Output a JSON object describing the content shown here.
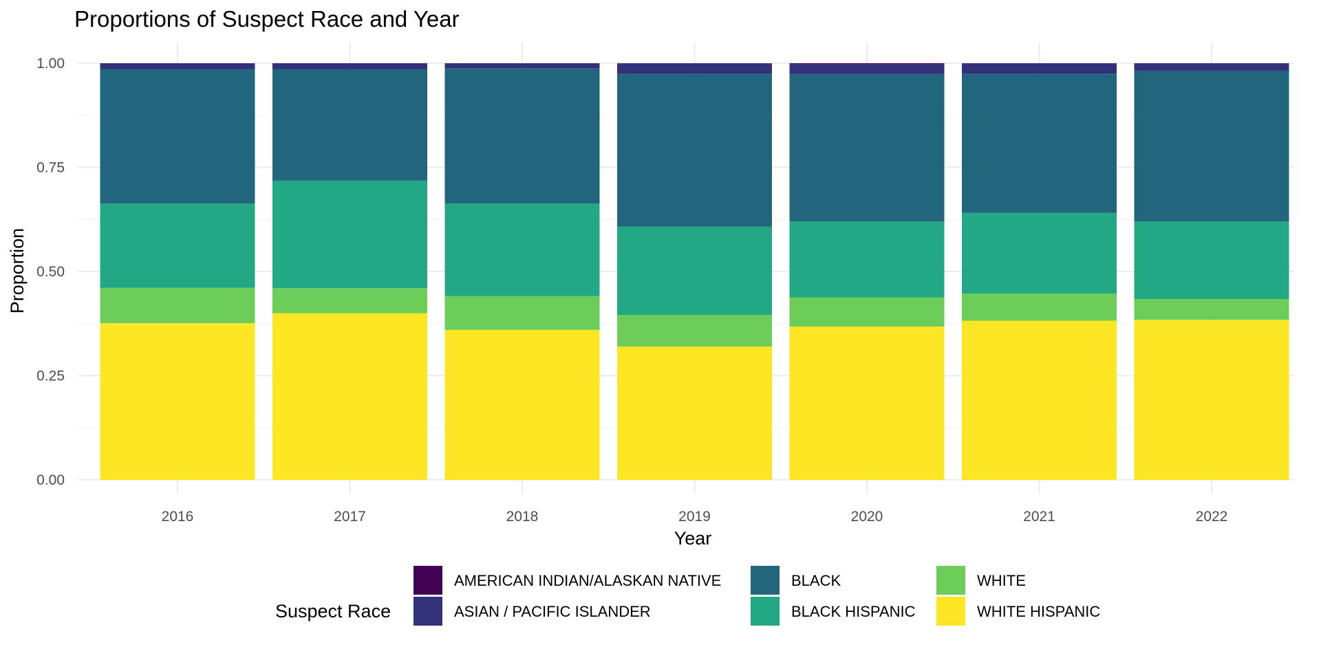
{
  "chart_data": {
    "type": "bar",
    "stacked": true,
    "title": "Proportions of Suspect Race and Year",
    "xlabel": "Year",
    "ylabel": "Proportion",
    "ylim": [
      0,
      1
    ],
    "yticks": [
      0.0,
      0.25,
      0.5,
      0.75,
      1.0
    ],
    "ytick_labels": [
      "0.00",
      "0.25",
      "0.50",
      "0.75",
      "1.00"
    ],
    "categories": [
      "2016",
      "2017",
      "2018",
      "2019",
      "2020",
      "2021",
      "2022"
    ],
    "legend_title": "Suspect Race",
    "legend_position": "bottom",
    "series": [
      {
        "name": "WHITE HISPANIC",
        "color": "#FDE725",
        "values": [
          0.376,
          0.4,
          0.36,
          0.32,
          0.368,
          0.382,
          0.384
        ]
      },
      {
        "name": "WHITE",
        "color": "#6CCE59",
        "values": [
          0.085,
          0.06,
          0.081,
          0.076,
          0.07,
          0.065,
          0.05
        ]
      },
      {
        "name": "BLACK HISPANIC",
        "color": "#22A884",
        "values": [
          0.202,
          0.258,
          0.222,
          0.212,
          0.182,
          0.194,
          0.186
        ]
      },
      {
        "name": "BLACK",
        "color": "#22667E",
        "values": [
          0.323,
          0.268,
          0.325,
          0.367,
          0.354,
          0.334,
          0.362
        ]
      },
      {
        "name": "ASIAN / PACIFIC ISLANDER",
        "color": "#32317A",
        "values": [
          0.014,
          0.014,
          0.012,
          0.025,
          0.024,
          0.025,
          0.018
        ]
      },
      {
        "name": "AMERICAN INDIAN/ALASKAN NATIVE",
        "color": "#440154",
        "values": [
          0.0,
          0.0,
          0.0,
          0.0,
          0.002,
          0.0,
          0.0
        ]
      }
    ],
    "legend_order": [
      "AMERICAN INDIAN/ALASKAN NATIVE",
      "ASIAN / PACIFIC ISLANDER",
      "BLACK",
      "BLACK HISPANIC",
      "WHITE",
      "WHITE HISPANIC"
    ]
  }
}
